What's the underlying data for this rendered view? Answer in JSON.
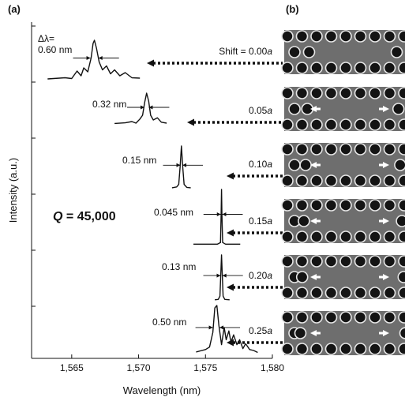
{
  "panels": {
    "a": "(a)",
    "b": "(b)"
  },
  "q_label_prefix": "Q",
  "q_label_suffix": " = 45,000",
  "chart_data": {
    "type": "line",
    "title": "",
    "xlabel": "Wavelength (nm)",
    "ylabel": "Intensity (a.u.)",
    "xlim": [
      1562,
      1580
    ],
    "x_ticks": [
      1565,
      1570,
      1575,
      1580
    ],
    "x_tick_labels": [
      "1,565",
      "1,570",
      "1,575",
      "1,580"
    ],
    "y_tick_count": 6,
    "grid": false,
    "delta_lambda_label": "Δλ=",
    "series": [
      {
        "shift": "Shift = 0.00",
        "shift_unit": "a",
        "peak_nm": 1566.7,
        "fwhm_label": "0.60 nm",
        "fwhm_nm": 0.6,
        "x": [
          1563.2,
          1564.5,
          1565.0,
          1565.4,
          1565.7,
          1565.9,
          1566.2,
          1566.45,
          1566.6,
          1566.7,
          1566.85,
          1567.05,
          1567.3,
          1567.6,
          1567.9,
          1568.2,
          1568.6,
          1569.0,
          1569.5,
          1570.1
        ],
        "y": [
          0.02,
          0.05,
          0.03,
          0.22,
          0.1,
          0.3,
          0.2,
          0.55,
          0.92,
          1.0,
          0.8,
          0.45,
          0.25,
          0.35,
          0.15,
          0.25,
          0.1,
          0.18,
          0.05,
          0.04
        ]
      },
      {
        "shift": "0.05",
        "shift_unit": "a",
        "peak_nm": 1570.6,
        "fwhm_label": "0.32 nm",
        "fwhm_nm": 0.32,
        "x": [
          1568.2,
          1569.0,
          1569.5,
          1569.8,
          1570.1,
          1570.3,
          1570.45,
          1570.6,
          1570.75,
          1570.9,
          1571.1,
          1571.4,
          1571.7,
          1572.1
        ],
        "y": [
          0.04,
          0.06,
          0.1,
          0.05,
          0.18,
          0.3,
          0.7,
          1.0,
          0.75,
          0.3,
          0.15,
          0.22,
          0.08,
          0.05
        ]
      },
      {
        "shift": "0.10",
        "shift_unit": "a",
        "peak_nm": 1573.2,
        "fwhm_label": "0.15 nm",
        "fwhm_nm": 0.15,
        "x": [
          1572.5,
          1572.85,
          1573.0,
          1573.1,
          1573.2,
          1573.3,
          1573.4,
          1573.6,
          1573.9
        ],
        "y": [
          0.02,
          0.04,
          0.1,
          0.5,
          1.0,
          0.5,
          0.1,
          0.03,
          0.02
        ]
      },
      {
        "shift": "0.15",
        "shift_unit": "a",
        "peak_nm": 1576.2,
        "fwhm_label": "0.045 nm",
        "fwhm_nm": 0.045,
        "x": [
          1574.1,
          1575.9,
          1576.12,
          1576.17,
          1576.2,
          1576.23,
          1576.28,
          1576.5,
          1577.6
        ],
        "y": [
          0.01,
          0.01,
          0.04,
          0.55,
          1.0,
          0.55,
          0.04,
          0.01,
          0.01
        ]
      },
      {
        "shift": "0.20",
        "shift_unit": "a",
        "peak_nm": 1576.2,
        "fwhm_label": "0.13 nm",
        "fwhm_nm": 0.13,
        "x": [
          1575.7,
          1575.95,
          1576.08,
          1576.14,
          1576.2,
          1576.26,
          1576.32,
          1576.45,
          1576.8
        ],
        "y": [
          0.02,
          0.03,
          0.1,
          0.55,
          1.0,
          0.55,
          0.1,
          0.03,
          0.02
        ]
      },
      {
        "shift": "0.25",
        "shift_unit": "a",
        "peak_nm": 1575.8,
        "fwhm_label": "0.50 nm",
        "fwhm_nm": 0.5,
        "x": [
          1574.3,
          1575.0,
          1575.3,
          1575.55,
          1575.7,
          1575.85,
          1576.0,
          1576.2,
          1576.4,
          1576.55,
          1576.75,
          1576.9,
          1577.1,
          1577.35,
          1577.55,
          1577.8,
          1578.0,
          1578.3,
          1578.6,
          1578.9
        ],
        "y": [
          0.05,
          0.1,
          0.15,
          0.45,
          0.95,
          1.0,
          0.6,
          0.2,
          0.55,
          0.3,
          0.48,
          0.25,
          0.4,
          0.2,
          0.3,
          0.12,
          0.22,
          0.1,
          0.08,
          0.04
        ]
      }
    ]
  },
  "sem_panel": {
    "description_colors": {
      "background": "#6e6e6e",
      "hole": "#141414",
      "hole_rim": "#e6e6e6",
      "arrow": "#ffffff"
    },
    "rows": 6
  }
}
